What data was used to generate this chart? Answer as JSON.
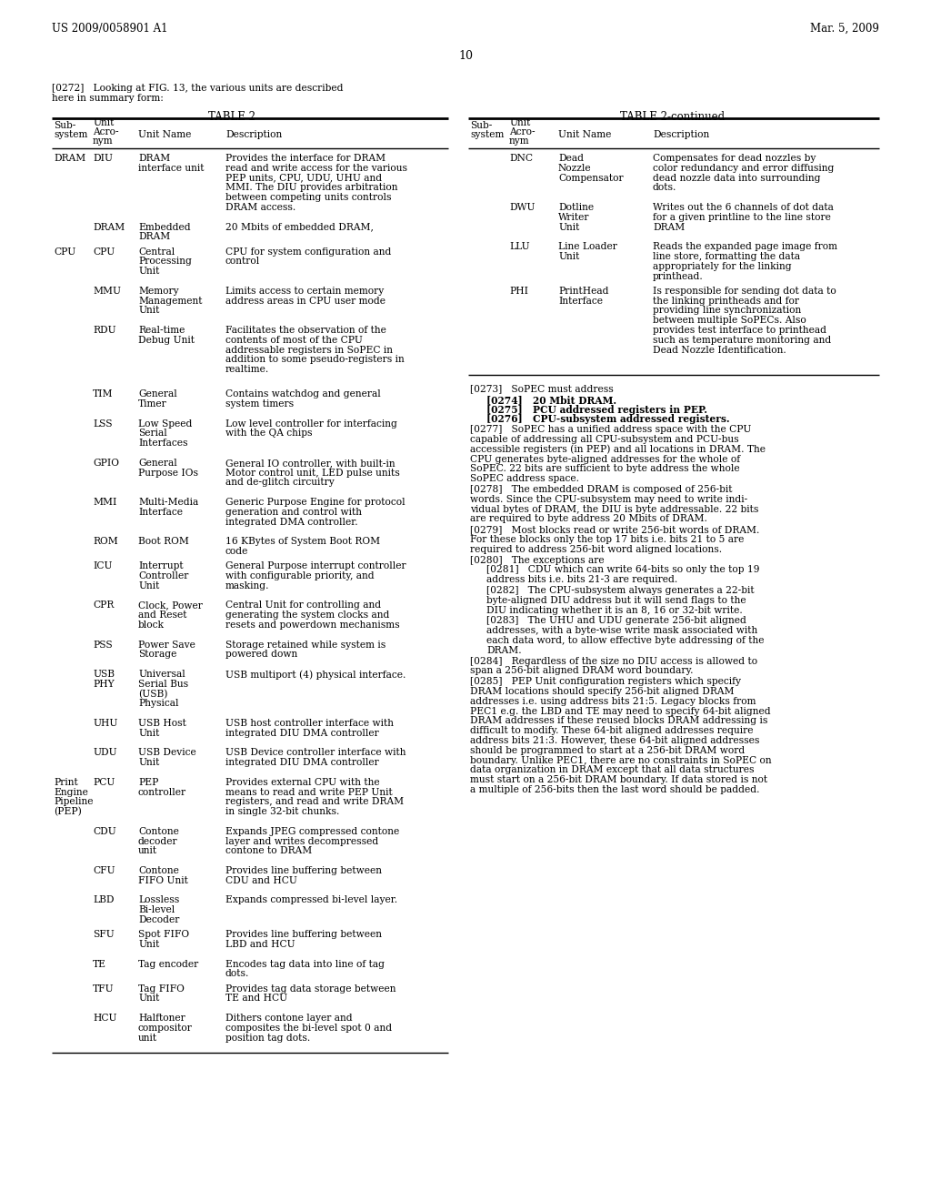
{
  "header_left": "US 2009/0058901 A1",
  "header_right": "Mar. 5, 2009",
  "page_number": "10",
  "bg_color": "#ffffff",
  "text_color": "#000000",
  "intro_line1": "[0272]   Looking at FIG. 13, the various units are described",
  "intro_line2": "here in summary form:",
  "table1_title": "TABLE 2",
  "table2_title": "TABLE 2-continued",
  "col1_header": [
    "Sub-",
    "system"
  ],
  "col2_header": [
    "Unit",
    "Acro-",
    "nym"
  ],
  "col3_header": "Unit Name",
  "col4_header": "Description",
  "lh": 10.8,
  "fs_body": 7.7,
  "fs_header": 8.5,
  "fs_page": 9.0
}
